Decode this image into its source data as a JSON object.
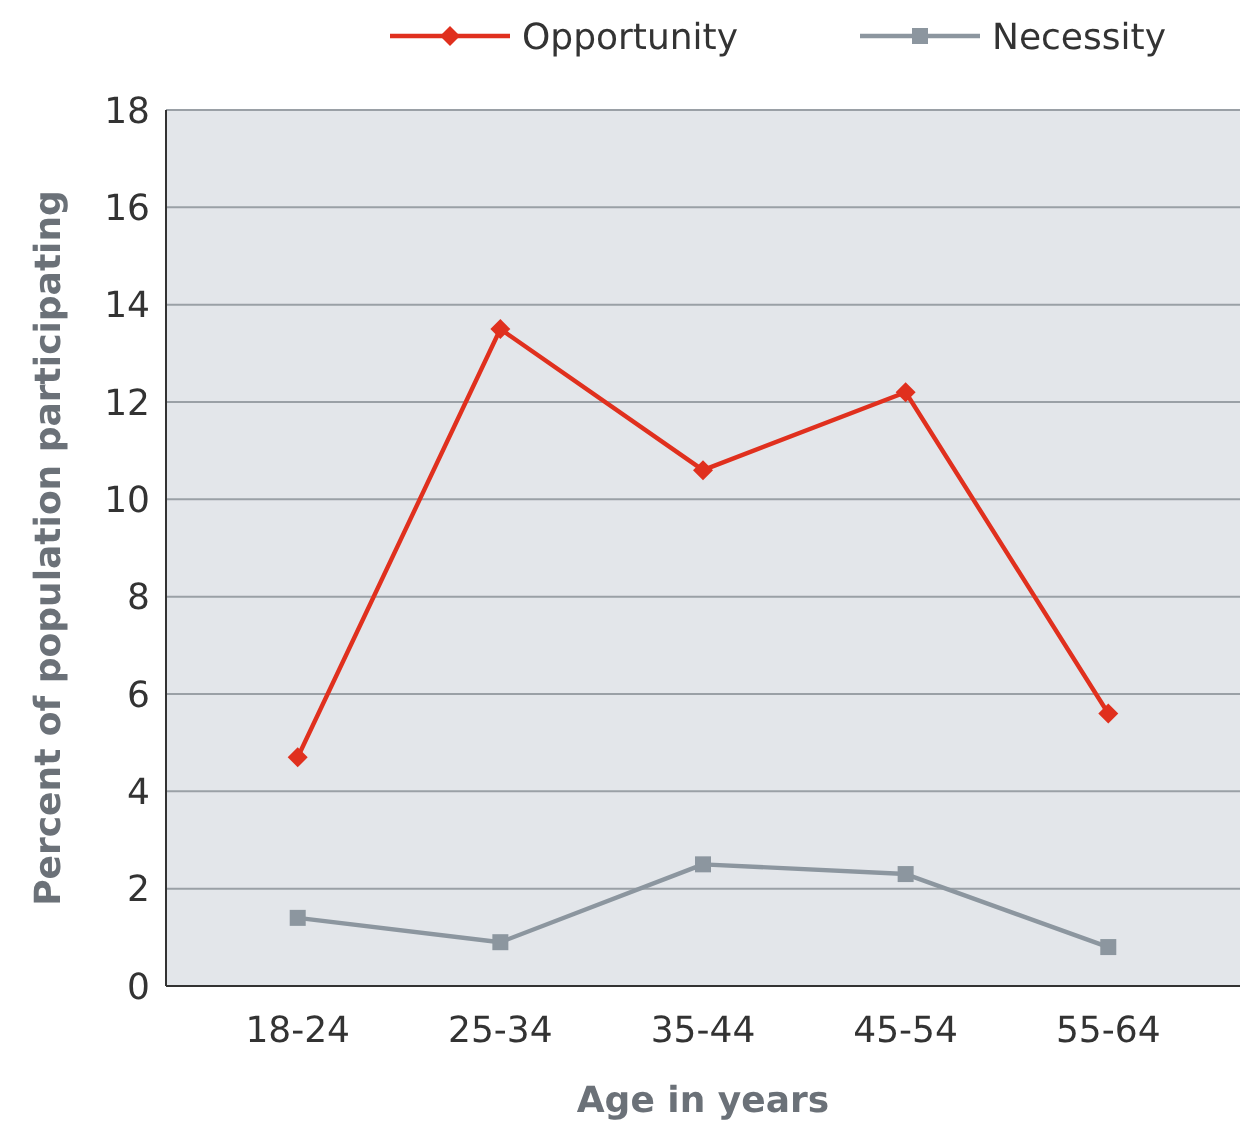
{
  "chart_data": {
    "type": "line",
    "xlabel": "Age in years",
    "ylabel": "Percent of population participating",
    "categories": [
      "18-24",
      "25-34",
      "35-44",
      "45-54",
      "55-64"
    ],
    "series": [
      {
        "name": "Opportunity",
        "color": "#e0301e",
        "marker": "diamond",
        "values": [
          4.7,
          13.5,
          10.6,
          12.2,
          5.6
        ]
      },
      {
        "name": "Necessity",
        "color": "#8c969f",
        "marker": "square",
        "values": [
          1.4,
          0.9,
          2.5,
          2.3,
          0.8
        ]
      }
    ],
    "ylim": [
      0,
      18
    ],
    "yticks": [
      0,
      2,
      4,
      6,
      8,
      10,
      12,
      14,
      16,
      18
    ],
    "grid": "y",
    "legend": "top",
    "line_style": "solid"
  }
}
